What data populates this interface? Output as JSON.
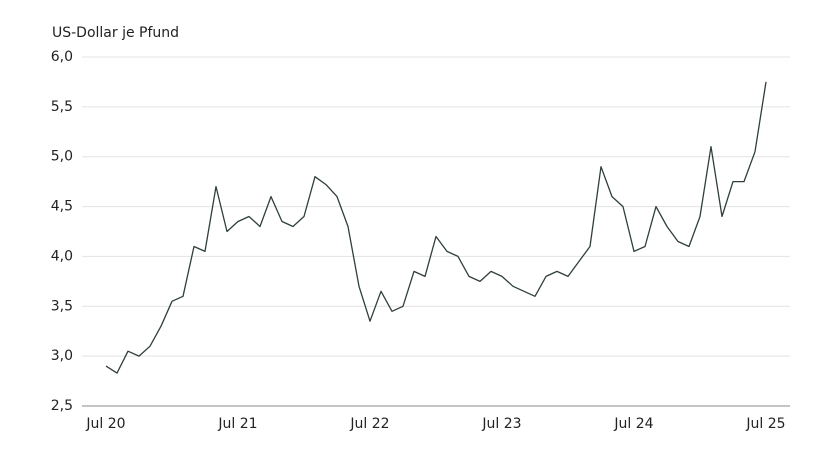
{
  "chart_data": {
    "type": "line",
    "y_axis_label": "US-Dollar je Pfund",
    "categories": [
      "Jul 20",
      null,
      null,
      null,
      null,
      null,
      null,
      null,
      null,
      null,
      null,
      null,
      "Jul 21",
      null,
      null,
      null,
      null,
      null,
      null,
      null,
      null,
      null,
      null,
      null,
      "Jul 22",
      null,
      null,
      null,
      null,
      null,
      null,
      null,
      null,
      null,
      null,
      null,
      "Jul 23",
      null,
      null,
      null,
      null,
      null,
      null,
      null,
      null,
      null,
      null,
      null,
      "Jul 24",
      null,
      null,
      null,
      null,
      null,
      null,
      null,
      null,
      null,
      null,
      null,
      "Jul 25"
    ],
    "series": [
      {
        "name": "US-Dollar je Pfund",
        "color": "#2f3f3b",
        "values": [
          2.9,
          2.83,
          3.05,
          3.0,
          3.1,
          3.3,
          3.55,
          3.6,
          4.1,
          4.05,
          4.7,
          4.25,
          4.35,
          4.4,
          4.3,
          4.6,
          4.35,
          4.3,
          4.4,
          4.8,
          4.72,
          4.6,
          4.3,
          3.7,
          3.35,
          3.65,
          3.45,
          3.5,
          3.85,
          3.8,
          4.2,
          4.05,
          4.0,
          3.8,
          3.75,
          3.85,
          3.8,
          3.7,
          3.65,
          3.6,
          3.8,
          3.85,
          3.8,
          3.95,
          4.1,
          4.9,
          4.6,
          4.5,
          4.05,
          4.1,
          4.5,
          4.3,
          4.15,
          4.1,
          4.4,
          5.1,
          4.4,
          4.75,
          4.75,
          5.05,
          5.75
        ]
      }
    ],
    "ylim": [
      2.5,
      6.0
    ],
    "yticks": [
      {
        "value": 2.5,
        "label": "2,5"
      },
      {
        "value": 3.0,
        "label": "3,0"
      },
      {
        "value": 3.5,
        "label": "3,5"
      },
      {
        "value": 4.0,
        "label": "4,0"
      },
      {
        "value": 4.5,
        "label": "4,5"
      },
      {
        "value": 5.0,
        "label": "5,0"
      },
      {
        "value": 5.5,
        "label": "5,5"
      },
      {
        "value": 6.0,
        "label": "6,0"
      }
    ],
    "grid": true
  }
}
